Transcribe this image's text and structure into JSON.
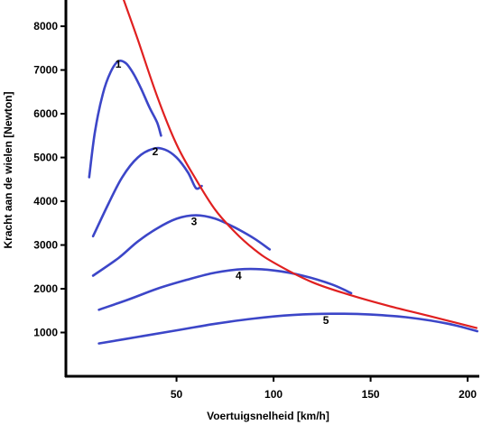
{
  "chart_data": {
    "type": "line",
    "title": "",
    "xlabel": "Voertuigsnelheid [km/h]",
    "ylabel": "Kracht aan de wielen [Newton]",
    "xlim": [
      -7,
      206
    ],
    "ylim": [
      0,
      8600
    ],
    "x_ticks": [
      "50",
      "100",
      "150",
      "200"
    ],
    "x_tick_values": [
      50,
      100,
      150,
      200
    ],
    "y_ticks": [
      "1000",
      "2000",
      "3000",
      "4000",
      "5000",
      "6000",
      "7000",
      "8000"
    ],
    "y_tick_values": [
      1000,
      2000,
      3000,
      4000,
      5000,
      6000,
      7000,
      8000
    ],
    "grid": false,
    "colors": {
      "envelope": "#e02020",
      "gear": "#3c46c8",
      "axis": "#000000"
    },
    "series": [
      {
        "label": "1",
        "label_at": [
          20,
          7050
        ],
        "points": [
          [
            5,
            4550
          ],
          [
            8,
            5600
          ],
          [
            12,
            6450
          ],
          [
            16,
            6950
          ],
          [
            20,
            7200
          ],
          [
            24,
            7150
          ],
          [
            28,
            6900
          ],
          [
            32,
            6550
          ],
          [
            36,
            6150
          ],
          [
            40,
            5800
          ],
          [
            42,
            5500
          ]
        ]
      },
      {
        "label": "2",
        "label_at": [
          39,
          5050
        ],
        "points": [
          [
            7,
            3200
          ],
          [
            15,
            3950
          ],
          [
            22,
            4550
          ],
          [
            30,
            5000
          ],
          [
            38,
            5200
          ],
          [
            44,
            5180
          ],
          [
            50,
            5000
          ],
          [
            56,
            4650
          ],
          [
            60,
            4300
          ],
          [
            63,
            4350
          ]
        ]
      },
      {
        "label": "3",
        "label_at": [
          59,
          3450
        ],
        "points": [
          [
            7,
            2300
          ],
          [
            20,
            2700
          ],
          [
            30,
            3080
          ],
          [
            40,
            3380
          ],
          [
            50,
            3600
          ],
          [
            60,
            3680
          ],
          [
            70,
            3600
          ],
          [
            80,
            3400
          ],
          [
            90,
            3150
          ],
          [
            98,
            2900
          ]
        ]
      },
      {
        "label": "4",
        "label_at": [
          82,
          2220
        ],
        "points": [
          [
            10,
            1520
          ],
          [
            25,
            1750
          ],
          [
            40,
            2000
          ],
          [
            55,
            2200
          ],
          [
            70,
            2370
          ],
          [
            85,
            2450
          ],
          [
            100,
            2420
          ],
          [
            115,
            2300
          ],
          [
            130,
            2100
          ],
          [
            140,
            1900
          ]
        ]
      },
      {
        "label": "5",
        "label_at": [
          127,
          1200
        ],
        "points": [
          [
            10,
            750
          ],
          [
            30,
            900
          ],
          [
            50,
            1050
          ],
          [
            70,
            1200
          ],
          [
            90,
            1320
          ],
          [
            110,
            1400
          ],
          [
            130,
            1430
          ],
          [
            150,
            1410
          ],
          [
            170,
            1340
          ],
          [
            190,
            1200
          ],
          [
            205,
            1030
          ]
        ]
      }
    ],
    "envelope": {
      "points": [
        [
          22,
          8700
        ],
        [
          30,
          7700
        ],
        [
          40,
          6400
        ],
        [
          50,
          5300
        ],
        [
          60,
          4500
        ],
        [
          70,
          3800
        ],
        [
          80,
          3300
        ],
        [
          90,
          2900
        ],
        [
          100,
          2600
        ],
        [
          120,
          2150
        ],
        [
          140,
          1850
        ],
        [
          160,
          1600
        ],
        [
          180,
          1380
        ],
        [
          205,
          1100
        ]
      ]
    }
  }
}
